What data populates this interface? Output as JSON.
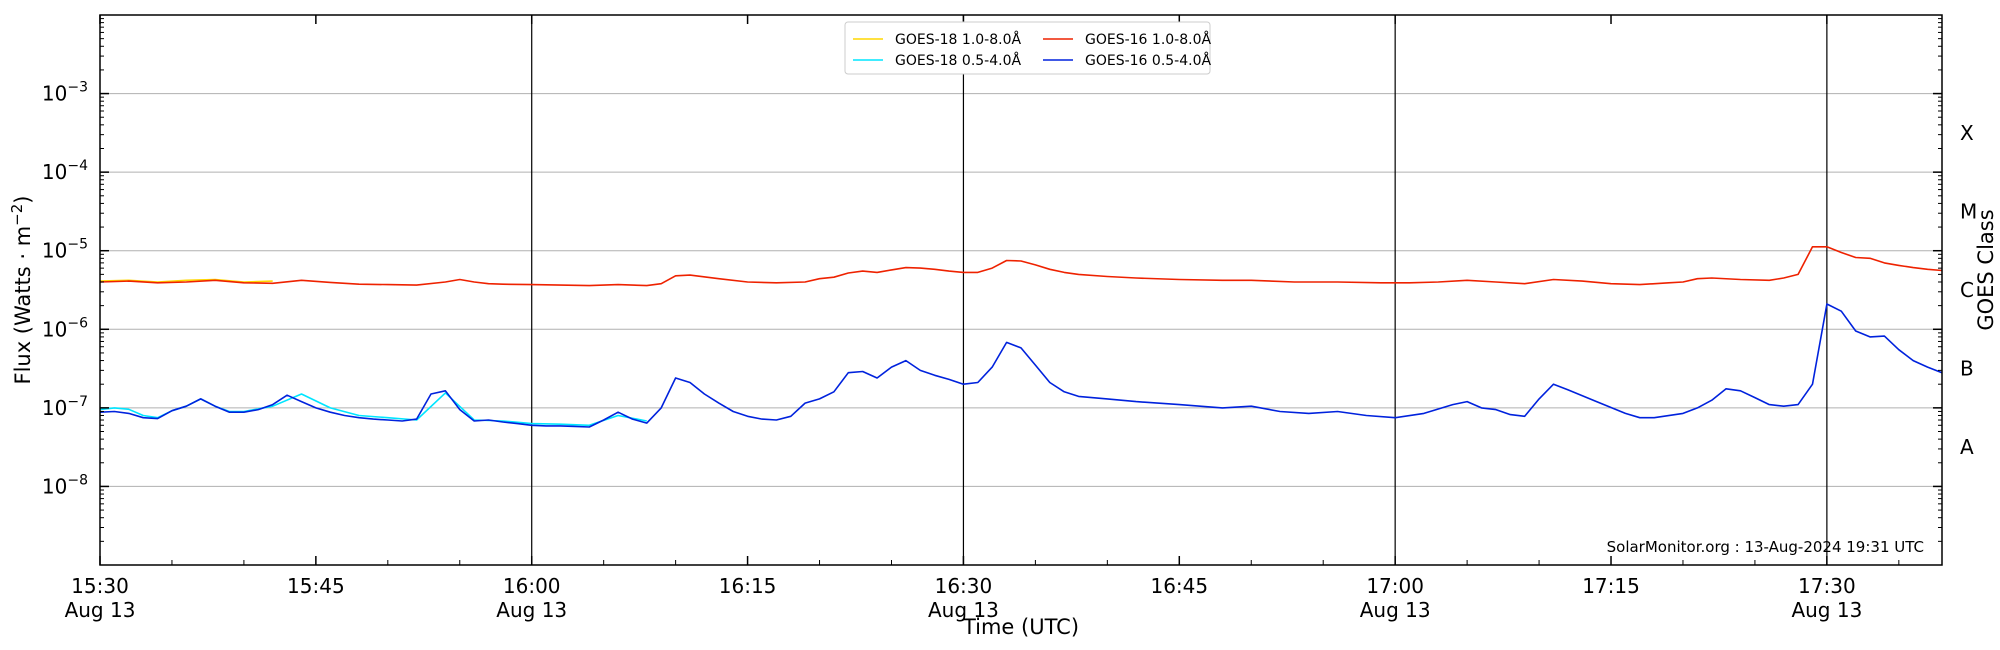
{
  "chart_data": {
    "type": "line",
    "xlabel": "Time (UTC)",
    "ylabel_base": "Flux (Watts · m",
    "ylabel_sup": "−2",
    "ylabel_close": ")",
    "right_label": "GOES Class",
    "credit": "SolarMonitor.org : 13-Aug-2024 19:31 UTC",
    "y_scale": "log",
    "ylim": [
      1e-09,
      0.01
    ],
    "xlim_minutes": [
      0,
      128
    ],
    "grid": "horizontal at decades",
    "legend_position": "top-center",
    "y_ticks": [
      {
        "value": 1e-08,
        "base": "10",
        "exp": "−8"
      },
      {
        "value": 1e-07,
        "base": "10",
        "exp": "−7"
      },
      {
        "value": 1e-06,
        "base": "10",
        "exp": "−6"
      },
      {
        "value": 1e-05,
        "base": "10",
        "exp": "−5"
      },
      {
        "value": 0.0001,
        "base": "10",
        "exp": "−4"
      },
      {
        "value": 0.001,
        "base": "10",
        "exp": "−3"
      }
    ],
    "class_labels": [
      {
        "label": "X",
        "value": 0.000316
      },
      {
        "label": "M",
        "value": 3.16e-05
      },
      {
        "label": "C",
        "value": 3.16e-06
      },
      {
        "label": "B",
        "value": 3.16e-07
      },
      {
        "label": "A",
        "value": 3.16e-08
      }
    ],
    "x_ticks": [
      {
        "minute": 0,
        "time": "15:30",
        "date": "Aug 13"
      },
      {
        "minute": 15,
        "time": "15:45",
        "date": ""
      },
      {
        "minute": 30,
        "time": "16:00",
        "date": "Aug 13"
      },
      {
        "minute": 45,
        "time": "16:15",
        "date": ""
      },
      {
        "minute": 60,
        "time": "16:30",
        "date": "Aug 13"
      },
      {
        "minute": 75,
        "time": "16:45",
        "date": ""
      },
      {
        "minute": 90,
        "time": "17:00",
        "date": "Aug 13"
      },
      {
        "minute": 105,
        "time": "17:15",
        "date": ""
      },
      {
        "minute": 120,
        "time": "17:30",
        "date": "Aug 13"
      }
    ],
    "vertical_lines_minutes": [
      30,
      60,
      90,
      120
    ],
    "series": [
      {
        "name": "GOES-18 1.0-8.0Å",
        "color": "#ffd700",
        "points": [
          [
            0,
            4.1e-06
          ],
          [
            2,
            4.2e-06
          ],
          [
            4,
            4e-06
          ],
          [
            6,
            4.2e-06
          ],
          [
            8,
            4.3e-06
          ],
          [
            10,
            4e-06
          ],
          [
            12,
            4.1e-06
          ]
        ]
      },
      {
        "name": "GOES-18 0.5-4.0Å",
        "color": "#00e5ff",
        "points": [
          [
            0,
            9.5e-08
          ],
          [
            1,
            1e-07
          ],
          [
            2,
            9.6e-08
          ],
          [
            3,
            8e-08
          ],
          [
            4,
            7.5e-08
          ],
          [
            5,
            9.2e-08
          ],
          [
            6,
            1.05e-07
          ],
          [
            7,
            1.3e-07
          ],
          [
            8,
            1.05e-07
          ],
          [
            9,
            9e-08
          ],
          [
            10,
            9e-08
          ],
          [
            12,
            1.05e-07
          ],
          [
            14,
            1.5e-07
          ],
          [
            16,
            1e-07
          ],
          [
            18,
            8e-08
          ],
          [
            20,
            7.5e-08
          ],
          [
            22,
            7e-08
          ],
          [
            24,
            1.55e-07
          ],
          [
            26,
            7e-08
          ],
          [
            28,
            6.8e-08
          ],
          [
            30,
            6.3e-08
          ],
          [
            32,
            6.2e-08
          ],
          [
            34,
            6e-08
          ],
          [
            36,
            8e-08
          ],
          [
            38,
            6.8e-08
          ]
        ]
      },
      {
        "name": "GOES-16 1.0-8.0Å",
        "color": "#ee2200",
        "points": [
          [
            0,
            4e-06
          ],
          [
            2,
            4.1e-06
          ],
          [
            4,
            3.9e-06
          ],
          [
            6,
            4e-06
          ],
          [
            8,
            4.2e-06
          ],
          [
            10,
            3.9e-06
          ],
          [
            12,
            3.85e-06
          ],
          [
            14,
            4.2e-06
          ],
          [
            16,
            3.95e-06
          ],
          [
            18,
            3.75e-06
          ],
          [
            20,
            3.7e-06
          ],
          [
            22,
            3.65e-06
          ],
          [
            24,
            4e-06
          ],
          [
            25,
            4.3e-06
          ],
          [
            26,
            4e-06
          ],
          [
            27,
            3.8e-06
          ],
          [
            28,
            3.75e-06
          ],
          [
            30,
            3.7e-06
          ],
          [
            32,
            3.65e-06
          ],
          [
            34,
            3.6e-06
          ],
          [
            36,
            3.7e-06
          ],
          [
            38,
            3.6e-06
          ],
          [
            39,
            3.8e-06
          ],
          [
            40,
            4.8e-06
          ],
          [
            41,
            4.9e-06
          ],
          [
            43,
            4.4e-06
          ],
          [
            45,
            4e-06
          ],
          [
            47,
            3.9e-06
          ],
          [
            49,
            4e-06
          ],
          [
            50,
            4.4e-06
          ],
          [
            51,
            4.6e-06
          ],
          [
            52,
            5.2e-06
          ],
          [
            53,
            5.5e-06
          ],
          [
            54,
            5.3e-06
          ],
          [
            55,
            5.7e-06
          ],
          [
            56,
            6.1e-06
          ],
          [
            57,
            6e-06
          ],
          [
            58,
            5.8e-06
          ],
          [
            59,
            5.5e-06
          ],
          [
            60,
            5.3e-06
          ],
          [
            61,
            5.3e-06
          ],
          [
            62,
            6e-06
          ],
          [
            63,
            7.5e-06
          ],
          [
            64,
            7.4e-06
          ],
          [
            65,
            6.6e-06
          ],
          [
            66,
            5.8e-06
          ],
          [
            67,
            5.3e-06
          ],
          [
            68,
            5e-06
          ],
          [
            70,
            4.7e-06
          ],
          [
            72,
            4.5e-06
          ],
          [
            75,
            4.3e-06
          ],
          [
            78,
            4.2e-06
          ],
          [
            80,
            4.2e-06
          ],
          [
            83,
            4e-06
          ],
          [
            86,
            4e-06
          ],
          [
            89,
            3.9e-06
          ],
          [
            91,
            3.9e-06
          ],
          [
            93,
            4e-06
          ],
          [
            95,
            4.2e-06
          ],
          [
            97,
            4e-06
          ],
          [
            99,
            3.8e-06
          ],
          [
            101,
            4.3e-06
          ],
          [
            103,
            4.1e-06
          ],
          [
            105,
            3.8e-06
          ],
          [
            107,
            3.7e-06
          ],
          [
            109,
            3.9e-06
          ],
          [
            110,
            4e-06
          ],
          [
            111,
            4.4e-06
          ],
          [
            112,
            4.5e-06
          ],
          [
            114,
            4.3e-06
          ],
          [
            116,
            4.2e-06
          ],
          [
            117,
            4.5e-06
          ],
          [
            118,
            5e-06
          ],
          [
            119,
            1.12e-05
          ],
          [
            120,
            1.12e-05
          ],
          [
            121,
            9.5e-06
          ],
          [
            122,
            8.2e-06
          ],
          [
            123,
            8e-06
          ],
          [
            124,
            7e-06
          ],
          [
            125,
            6.5e-06
          ],
          [
            126,
            6.1e-06
          ],
          [
            127,
            5.8e-06
          ],
          [
            128,
            5.6e-06
          ]
        ]
      },
      {
        "name": "GOES-16 0.5-4.0Å",
        "color": "#0022dd",
        "points": [
          [
            0,
            8.8e-08
          ],
          [
            1,
            9e-08
          ],
          [
            2,
            8.5e-08
          ],
          [
            3,
            7.5e-08
          ],
          [
            4,
            7.3e-08
          ],
          [
            5,
            9.2e-08
          ],
          [
            6,
            1.05e-07
          ],
          [
            7,
            1.3e-07
          ],
          [
            8,
            1.05e-07
          ],
          [
            9,
            8.8e-08
          ],
          [
            10,
            8.8e-08
          ],
          [
            11,
            9.5e-08
          ],
          [
            12,
            1.1e-07
          ],
          [
            13,
            1.45e-07
          ],
          [
            14,
            1.2e-07
          ],
          [
            15,
            1e-07
          ],
          [
            16,
            8.8e-08
          ],
          [
            17,
            8e-08
          ],
          [
            18,
            7.5e-08
          ],
          [
            19,
            7.2e-08
          ],
          [
            20,
            7e-08
          ],
          [
            21,
            6.8e-08
          ],
          [
            22,
            7.2e-08
          ],
          [
            23,
            1.5e-07
          ],
          [
            24,
            1.65e-07
          ],
          [
            25,
            9.5e-08
          ],
          [
            26,
            6.8e-08
          ],
          [
            27,
            7e-08
          ],
          [
            28,
            6.6e-08
          ],
          [
            29,
            6.3e-08
          ],
          [
            30,
            6e-08
          ],
          [
            31,
            5.9e-08
          ],
          [
            32,
            5.9e-08
          ],
          [
            33,
            5.8e-08
          ],
          [
            34,
            5.7e-08
          ],
          [
            35,
            7e-08
          ],
          [
            36,
            8.8e-08
          ],
          [
            37,
            7.2e-08
          ],
          [
            38,
            6.4e-08
          ],
          [
            39,
            1e-07
          ],
          [
            40,
            2.4e-07
          ],
          [
            41,
            2.1e-07
          ],
          [
            42,
            1.5e-07
          ],
          [
            43,
            1.15e-07
          ],
          [
            44,
            9e-08
          ],
          [
            45,
            7.8e-08
          ],
          [
            46,
            7.2e-08
          ],
          [
            47,
            7e-08
          ],
          [
            48,
            7.8e-08
          ],
          [
            49,
            1.15e-07
          ],
          [
            50,
            1.3e-07
          ],
          [
            51,
            1.6e-07
          ],
          [
            52,
            2.8e-07
          ],
          [
            53,
            2.9e-07
          ],
          [
            54,
            2.4e-07
          ],
          [
            55,
            3.3e-07
          ],
          [
            56,
            4e-07
          ],
          [
            57,
            3e-07
          ],
          [
            58,
            2.6e-07
          ],
          [
            59,
            2.3e-07
          ],
          [
            60,
            2e-07
          ],
          [
            61,
            2.1e-07
          ],
          [
            62,
            3.3e-07
          ],
          [
            63,
            6.8e-07
          ],
          [
            64,
            5.8e-07
          ],
          [
            65,
            3.5e-07
          ],
          [
            66,
            2.1e-07
          ],
          [
            67,
            1.6e-07
          ],
          [
            68,
            1.4e-07
          ],
          [
            70,
            1.3e-07
          ],
          [
            72,
            1.2e-07
          ],
          [
            75,
            1.1e-07
          ],
          [
            78,
            1e-07
          ],
          [
            80,
            1.05e-07
          ],
          [
            82,
            9e-08
          ],
          [
            84,
            8.5e-08
          ],
          [
            86,
            9e-08
          ],
          [
            88,
            8e-08
          ],
          [
            90,
            7.5e-08
          ],
          [
            92,
            8.5e-08
          ],
          [
            94,
            1.1e-07
          ],
          [
            95,
            1.2e-07
          ],
          [
            96,
            1e-07
          ],
          [
            97,
            9.5e-08
          ],
          [
            98,
            8.2e-08
          ],
          [
            99,
            7.8e-08
          ],
          [
            100,
            1.3e-07
          ],
          [
            101,
            2e-07
          ],
          [
            102,
            1.7e-07
          ],
          [
            104,
            1.2e-07
          ],
          [
            106,
            8.5e-08
          ],
          [
            107,
            7.5e-08
          ],
          [
            108,
            7.5e-08
          ],
          [
            110,
            8.5e-08
          ],
          [
            111,
            1e-07
          ],
          [
            112,
            1.25e-07
          ],
          [
            113,
            1.75e-07
          ],
          [
            114,
            1.65e-07
          ],
          [
            115,
            1.35e-07
          ],
          [
            116,
            1.1e-07
          ],
          [
            117,
            1.05e-07
          ],
          [
            118,
            1.1e-07
          ],
          [
            119,
            2e-07
          ],
          [
            120,
            2.1e-06
          ],
          [
            121,
            1.7e-06
          ],
          [
            122,
            9.5e-07
          ],
          [
            123,
            8e-07
          ],
          [
            124,
            8.2e-07
          ],
          [
            125,
            5.5e-07
          ],
          [
            126,
            4e-07
          ],
          [
            127,
            3.3e-07
          ],
          [
            128,
            2.8e-07
          ]
        ]
      }
    ],
    "legend_order": [
      0,
      1,
      2,
      3
    ]
  }
}
